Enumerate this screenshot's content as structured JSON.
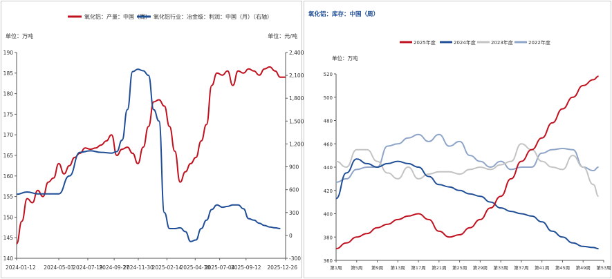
{
  "chart_data": [
    {
      "type": "line",
      "legend_position": "top",
      "legend": [
        "氧化铝：产量：中国（周）",
        "氧化铝行业：冶金级：利润：中国（月）（右轴）"
      ],
      "y_unit_left": "单位：万吨",
      "y_unit_right": "单位：元/吨",
      "ylim_left": [
        140,
        190
      ],
      "yticks_left": [
        "140",
        "145",
        "150",
        "155",
        "160",
        "165",
        "170",
        "175",
        "180",
        "185",
        "190"
      ],
      "ylim_right": [
        -300,
        2400
      ],
      "yticks_right": [
        "-300",
        "0",
        "300",
        "600",
        "900",
        "1,200",
        "1,500",
        "1,800",
        "2,100",
        "2,400"
      ],
      "xlim": [
        "2024-01-12",
        "2025-12-26"
      ],
      "x_tick_labels": [
        "2024-01-12",
        "2024-05-03",
        "2024-07-19",
        "2024-09-27",
        "2024-11-30",
        "2025-02-14",
        "2025-04-30",
        "2025-07-04",
        "2025-09-12",
        "2025-12-26"
      ],
      "series": [
        {
          "name": "氧化铝：产量：中国（周）",
          "axis": "left",
          "color": "#c0111f",
          "x": [
            "2024-01-12",
            "2024-01-26",
            "2024-02-09",
            "2024-02-23",
            "2024-03-08",
            "2024-03-22",
            "2024-04-05",
            "2024-04-19",
            "2024-05-03",
            "2024-05-17",
            "2024-05-31",
            "2024-06-14",
            "2024-06-28",
            "2024-07-12",
            "2024-07-26",
            "2024-08-09",
            "2024-08-23",
            "2024-09-06",
            "2024-09-20",
            "2024-10-04",
            "2024-10-18",
            "2024-11-01",
            "2024-11-15",
            "2024-11-29",
            "2024-12-13",
            "2024-12-27",
            "2025-01-10",
            "2025-01-24",
            "2025-02-07",
            "2025-02-21",
            "2025-03-07",
            "2025-03-21",
            "2025-04-04",
            "2025-04-18",
            "2025-05-02",
            "2025-05-16",
            "2025-05-30",
            "2025-06-13",
            "2025-06-27",
            "2025-07-11",
            "2025-07-25",
            "2025-08-08",
            "2025-08-22",
            "2025-09-05",
            "2025-09-19",
            "2025-10-03",
            "2025-10-17",
            "2025-10-31",
            "2025-11-14",
            "2025-11-28",
            "2025-12-12",
            "2025-12-26"
          ],
          "values": [
            143.5,
            149,
            154.5,
            153.5,
            156.5,
            155,
            158.5,
            159.5,
            163,
            160.5,
            162.5,
            164.5,
            165.5,
            166.8,
            166.5,
            166.8,
            167.5,
            168.5,
            170,
            165,
            166.5,
            167,
            165.5,
            163,
            167,
            172,
            178,
            178.5,
            177,
            172,
            166,
            158.5,
            161,
            163,
            164.5,
            168.5,
            172.5,
            182,
            185,
            184.5,
            185.5,
            182,
            185.5,
            185,
            186,
            185.5,
            184.5,
            186,
            186.5,
            185.5,
            184,
            184
          ]
        },
        {
          "name": "氧化铝行业：冶金级：利润：中国（月）（右轴）",
          "axis": "right",
          "color": "#1f4e96",
          "x": [
            "2024-01-12",
            "2024-02-09",
            "2024-03-08",
            "2024-04-05",
            "2024-05-03",
            "2024-05-31",
            "2024-06-28",
            "2024-07-26",
            "2024-08-23",
            "2024-09-20",
            "2024-10-04",
            "2024-10-18",
            "2024-11-01",
            "2024-11-15",
            "2024-11-29",
            "2024-12-13",
            "2024-12-27",
            "2025-01-10",
            "2025-01-24",
            "2025-02-07",
            "2025-02-21",
            "2025-03-07",
            "2025-03-21",
            "2025-04-04",
            "2025-04-18",
            "2025-05-02",
            "2025-05-16",
            "2025-05-30",
            "2025-06-13",
            "2025-06-27",
            "2025-07-11",
            "2025-07-25",
            "2025-08-08",
            "2025-08-22",
            "2025-09-05",
            "2025-09-19",
            "2025-10-03",
            "2025-10-17",
            "2025-10-31",
            "2025-11-14",
            "2025-11-28",
            "2025-12-12"
          ],
          "values": [
            540,
            570,
            545,
            545,
            545,
            780,
            1090,
            1110,
            1090,
            1080,
            1100,
            1250,
            1650,
            2150,
            2180,
            2160,
            2100,
            1650,
            1500,
            300,
            90,
            90,
            100,
            50,
            -80,
            -60,
            90,
            200,
            340,
            400,
            370,
            380,
            400,
            400,
            350,
            220,
            200,
            160,
            130,
            110,
            100,
            90
          ]
        }
      ]
    },
    {
      "type": "line",
      "title": "氧化铝：库存：中国（周）",
      "y_unit": "单位：万吨",
      "legend_position": "top",
      "legend": [
        "2025年度",
        "2024年度",
        "2023年度",
        "2022年度"
      ],
      "ylim": [
        360,
        520
      ],
      "yticks": [
        "360",
        "380",
        "400",
        "420",
        "440",
        "460",
        "480",
        "500",
        "520"
      ],
      "x_tick_labels": [
        "第1周",
        "第5周",
        "第9周",
        "第13周",
        "第17周",
        "第21周",
        "第25周",
        "第29周",
        "第33周",
        "第37周",
        "第41周",
        "第45周",
        "第49周",
        "第53周"
      ],
      "x_range": [
        1,
        53
      ],
      "series": [
        {
          "name": "2025年度",
          "color": "#c0111f",
          "x": [
            1,
            3,
            5,
            7,
            9,
            11,
            13,
            15,
            17,
            19,
            21,
            23,
            25,
            27,
            29,
            31,
            33,
            35,
            37,
            39,
            41,
            43,
            45,
            47,
            49,
            51,
            52
          ],
          "values": [
            370,
            375,
            380,
            383,
            388,
            391,
            395,
            398,
            400,
            395,
            385,
            380,
            382,
            388,
            395,
            405,
            415,
            430,
            445,
            455,
            465,
            478,
            490,
            500,
            510,
            515,
            518
          ]
        },
        {
          "name": "2024年度",
          "color": "#1f4e96",
          "x": [
            1,
            3,
            5,
            7,
            9,
            11,
            13,
            15,
            17,
            19,
            21,
            23,
            25,
            27,
            29,
            31,
            33,
            35,
            37,
            39,
            41,
            43,
            45,
            47,
            49,
            51,
            52
          ],
          "values": [
            413,
            435,
            447,
            443,
            440,
            443,
            445,
            443,
            440,
            432,
            425,
            423,
            420,
            417,
            415,
            410,
            405,
            402,
            400,
            398,
            393,
            385,
            380,
            375,
            372,
            371,
            370
          ]
        },
        {
          "name": "2023年度",
          "color": "#c3c3c3",
          "x": [
            1,
            3,
            5,
            7,
            9,
            11,
            13,
            15,
            17,
            19,
            21,
            23,
            25,
            27,
            29,
            31,
            33,
            35,
            37,
            39,
            41,
            43,
            45,
            47,
            49,
            51,
            52
          ],
          "values": [
            445,
            440,
            455,
            455,
            445,
            435,
            430,
            440,
            430,
            434,
            436,
            436,
            434,
            438,
            440,
            438,
            442,
            445,
            460,
            455,
            445,
            440,
            438,
            450,
            440,
            425,
            415
          ]
        },
        {
          "name": "2022年度",
          "color": "#8ea4c8",
          "x": [
            1,
            3,
            5,
            7,
            9,
            11,
            13,
            15,
            17,
            19,
            21,
            23,
            25,
            27,
            29,
            31,
            33,
            35,
            37,
            39,
            41,
            43,
            45,
            47,
            49,
            51,
            52
          ],
          "values": [
            427,
            430,
            438,
            440,
            440,
            458,
            460,
            465,
            468,
            462,
            468,
            458,
            462,
            450,
            445,
            440,
            445,
            438,
            440,
            440,
            452,
            455,
            456,
            455,
            440,
            437,
            440
          ]
        }
      ]
    }
  ]
}
